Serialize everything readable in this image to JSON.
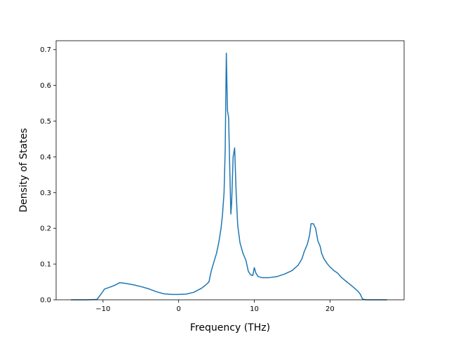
{
  "chart_data": {
    "type": "line",
    "title": "",
    "xlabel": "Frequency (THz)",
    "ylabel": "Density of States",
    "xlim": [
      -16.2,
      29.8
    ],
    "ylim": [
      0.0,
      0.725
    ],
    "grid": false,
    "legend": "none",
    "line_color": "#1f77b4",
    "x_ticks": [
      -10,
      0,
      10,
      20
    ],
    "x_tick_labels": [
      "−10",
      "0",
      "10",
      "20"
    ],
    "y_ticks": [
      0.0,
      0.1,
      0.2,
      0.3,
      0.4,
      0.5,
      0.6,
      0.7
    ],
    "y_tick_labels": [
      "0.0",
      "0.1",
      "0.2",
      "0.3",
      "0.4",
      "0.5",
      "0.6",
      "0.7"
    ],
    "series": [
      {
        "x": [
          -14.2,
          -12.0,
          -10.8,
          -10.3,
          -9.8,
          -9.0,
          -8.3,
          -7.8,
          -7.0,
          -6.0,
          -5.0,
          -4.0,
          -3.0,
          -2.0,
          -1.5,
          -1.0,
          0.0,
          1.0,
          2.0,
          3.0,
          3.5,
          4.0,
          4.3,
          4.5,
          5.0,
          5.3,
          5.6,
          5.8,
          6.0,
          6.15,
          6.3,
          6.45,
          6.6,
          6.75,
          6.9,
          7.0,
          7.2,
          7.4,
          7.6,
          7.8,
          8.1,
          8.5,
          8.9,
          9.2,
          9.5,
          9.8,
          10.0,
          10.2,
          10.5,
          11.0,
          12.0,
          13.0,
          14.0,
          15.0,
          15.8,
          16.3,
          16.6,
          17.0,
          17.3,
          17.5,
          17.8,
          18.1,
          18.4,
          18.7,
          18.9,
          19.2,
          19.6,
          20.0,
          20.5,
          21.0,
          21.5,
          22.0,
          23.0,
          23.7,
          24.0,
          24.3,
          24.8,
          26.0,
          27.5
        ],
        "y": [
          0.0,
          0.0,
          0.001,
          0.015,
          0.03,
          0.036,
          0.042,
          0.048,
          0.046,
          0.042,
          0.037,
          0.031,
          0.023,
          0.017,
          0.016,
          0.015,
          0.015,
          0.016,
          0.021,
          0.032,
          0.04,
          0.05,
          0.08,
          0.095,
          0.13,
          0.16,
          0.2,
          0.24,
          0.3,
          0.42,
          0.69,
          0.53,
          0.51,
          0.37,
          0.24,
          0.27,
          0.4,
          0.425,
          0.3,
          0.21,
          0.16,
          0.13,
          0.11,
          0.08,
          0.07,
          0.068,
          0.09,
          0.075,
          0.065,
          0.062,
          0.062,
          0.065,
          0.072,
          0.082,
          0.097,
          0.115,
          0.135,
          0.155,
          0.18,
          0.213,
          0.213,
          0.2,
          0.165,
          0.15,
          0.13,
          0.115,
          0.102,
          0.092,
          0.082,
          0.075,
          0.063,
          0.054,
          0.037,
          0.024,
          0.016,
          0.002,
          0.0,
          0.0,
          0.0
        ]
      }
    ]
  }
}
